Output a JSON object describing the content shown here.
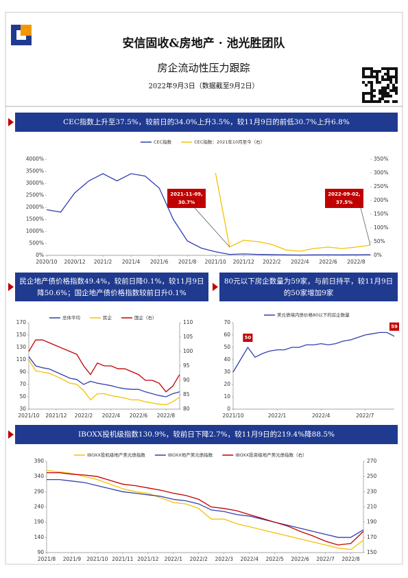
{
  "header": {
    "title": "安信固收&房地产 · 池光胜团队",
    "subtitle": "房企流动性压力跟踪",
    "date": "2022年9月3日（数据截至9月2日）"
  },
  "sections": [
    {
      "banner": [
        "CEC指数上升至37.5%，较前日的34.0%上升3.5%，较11月9日的前低30.7%上升6.8%"
      ]
    },
    {
      "banner": [
        "民企地产债价格指数49.4%，较前日降0.1%，较11月9日",
        "降50.6%；国企地产债价格指数较前日升0.1%"
      ]
    },
    {
      "banner": [
        "80元以下房企数量为59家，与前日持平，较11月9日",
        "的50家增加9家"
      ]
    },
    {
      "banner": [
        "IBOXX投机级指数130.9%，较前日下降2.7%，较11月9日的219.4%降88.5%"
      ]
    }
  ],
  "chart_data": [
    {
      "type": "line",
      "categories": [
        "2020/10",
        null,
        "2020/12",
        null,
        "2021/2",
        null,
        "2021/4",
        null,
        "2021/6",
        null,
        "2021/8",
        null,
        "2021/10",
        null,
        "2021/12",
        null,
        "2022/2",
        null,
        "2022/4",
        null,
        "2022/6",
        null,
        "2022/8",
        null
      ],
      "series": [
        {
          "name": "CEC指数",
          "color": "#2f3fae",
          "values": [
            1900,
            1800,
            2600,
            3100,
            3400,
            3100,
            3400,
            3300,
            2800,
            1500,
            600,
            300,
            150,
            40,
            60,
            40,
            30,
            20,
            15,
            20,
            25,
            20,
            25,
            30
          ]
        },
        {
          "name": "CEC指数：2021年10月至今（右）",
          "color": "#f5c000",
          "axis": "y2",
          "values": [
            null,
            null,
            null,
            null,
            null,
            null,
            null,
            null,
            null,
            null,
            null,
            null,
            300,
            30.7,
            55,
            50,
            40,
            20,
            15,
            25,
            30,
            25,
            30,
            37.5
          ]
        }
      ],
      "ylim": [
        0,
        4000
      ],
      "yticks": [
        {
          "value": 0,
          "label": "0%"
        },
        {
          "value": 500,
          "label": "500%"
        },
        {
          "value": 1000,
          "label": "1000%"
        },
        {
          "value": 1500,
          "label": "1500%"
        },
        {
          "value": 2000,
          "label": "2000%"
        },
        {
          "value": 2500,
          "label": "2500%"
        },
        {
          "value": 3000,
          "label": "3000%"
        },
        {
          "value": 3500,
          "label": "3500%"
        },
        {
          "value": 4000,
          "label": "4000%"
        }
      ],
      "y2lim": [
        0,
        350
      ],
      "y2ticks": [
        {
          "value": 0,
          "label": "0%"
        },
        {
          "value": 50,
          "label": "50%"
        },
        {
          "value": 100,
          "label": "100%"
        },
        {
          "value": 150,
          "label": "150%"
        },
        {
          "value": 200,
          "label": "200%"
        },
        {
          "value": 250,
          "label": "250%"
        },
        {
          "value": 300,
          "label": "300%"
        },
        {
          "value": 350,
          "label": "350%"
        }
      ],
      "annotations": [
        {
          "text": [
            "2021-11-09,",
            "30.7%"
          ]
        },
        {
          "text": [
            "2022-09-02,",
            "37.5%"
          ]
        }
      ]
    },
    {
      "type": "line",
      "categories": [
        "2021/10",
        null,
        null,
        null,
        "2021/12",
        null,
        null,
        null,
        "2022/2",
        null,
        null,
        null,
        "2022/4",
        null,
        null,
        null,
        "2022/6",
        null,
        null,
        null,
        "2022/8",
        null,
        null
      ],
      "series": [
        {
          "name": "总体平均",
          "color": "#2f3fae",
          "values": [
            115,
            100,
            97,
            95,
            90,
            85,
            80,
            78,
            70,
            75,
            72,
            70,
            68,
            65,
            63,
            62,
            62,
            58,
            55,
            52,
            50,
            55,
            58
          ]
        },
        {
          "name": "民企",
          "color": "#f5c000",
          "values": [
            110,
            92,
            90,
            88,
            83,
            78,
            72,
            70,
            60,
            45,
            55,
            55,
            52,
            50,
            48,
            45,
            45,
            42,
            40,
            38,
            37,
            42,
            49.4
          ]
        },
        {
          "name": "国企（右）",
          "color": "#c00000",
          "axis": "y2",
          "values": [
            100,
            104,
            104,
            103,
            102,
            101,
            100,
            99,
            95,
            92,
            96,
            95,
            95,
            94,
            94,
            93,
            92,
            90,
            90,
            89,
            86,
            88,
            92
          ]
        }
      ],
      "ylim": [
        30,
        170
      ],
      "yticks": [
        30,
        50,
        70,
        90,
        110,
        130,
        150,
        170
      ],
      "y2lim": [
        80,
        110
      ],
      "y2ticks": [
        80,
        85,
        90,
        95,
        100,
        105,
        110
      ]
    },
    {
      "type": "line",
      "categories": [
        "2021/10",
        null,
        null,
        null,
        null,
        null,
        "2022/1",
        null,
        null,
        null,
        null,
        null,
        "2022/4",
        null,
        null,
        null,
        null,
        null,
        "2022/7",
        null,
        null,
        null,
        null
      ],
      "series": [
        {
          "name": "美元债境内债价格80以下的房企数量",
          "color": "#2f3fae",
          "values": [
            30,
            40,
            50,
            42,
            45,
            47,
            48,
            48,
            50,
            50,
            52,
            52,
            53,
            52,
            53,
            55,
            56,
            58,
            60,
            61,
            62,
            62,
            59
          ]
        }
      ],
      "ylim": [
        0,
        70
      ],
      "yticks": [
        0,
        10,
        20,
        30,
        40,
        50,
        60,
        70
      ]
    },
    {
      "type": "line",
      "categories": [
        "2021/8",
        null,
        "2021/9",
        null,
        "2021/10",
        null,
        "2021/11",
        null,
        "2021/12",
        null,
        "2022/1",
        null,
        "2022/2",
        null,
        "2022/3",
        null,
        "2022/4",
        null,
        "2022/5",
        null,
        "2022/6",
        null,
        "2022/7",
        null,
        "2022/8",
        null
      ],
      "series": [
        {
          "name": "IBOXX投机级地产美元债指数",
          "color": "#f5c000",
          "values": [
            360,
            355,
            350,
            340,
            330,
            315,
            300,
            290,
            285,
            270,
            255,
            250,
            235,
            200,
            200,
            185,
            175,
            165,
            155,
            145,
            135,
            125,
            115,
            105,
            100,
            130.9
          ]
        },
        {
          "name": "IBOXX地产美元债指数",
          "color": "#2f3fae",
          "values": [
            330,
            330,
            325,
            320,
            310,
            300,
            290,
            285,
            280,
            275,
            265,
            260,
            250,
            230,
            225,
            215,
            210,
            200,
            190,
            180,
            170,
            160,
            150,
            140,
            140,
            165
          ]
        },
        {
          "name": "IBOXX投资级地产美元债指数（右）",
          "color": "#c00000",
          "axis": "y2",
          "values": [
            255,
            255,
            253,
            252,
            250,
            245,
            240,
            238,
            235,
            232,
            228,
            225,
            220,
            210,
            208,
            205,
            200,
            195,
            190,
            185,
            178,
            172,
            165,
            160,
            162,
            178
          ]
        }
      ],
      "ylim": [
        90,
        390
      ],
      "yticks": [
        90,
        140,
        190,
        240,
        290,
        340,
        390
      ],
      "y2lim": [
        150,
        270
      ],
      "y2ticks": [
        150,
        170,
        190,
        210,
        230,
        250,
        270
      ]
    }
  ]
}
